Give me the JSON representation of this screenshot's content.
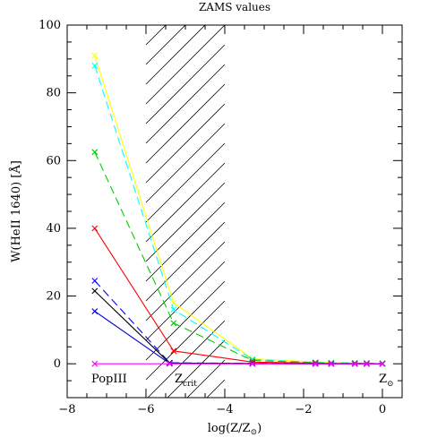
{
  "chart_data": {
    "type": "line",
    "title": "ZAMS values",
    "xlabel": "log(Z/Z",
    "xlabel_sub": "⊙",
    "xlabel_end": ")",
    "ylabel": "W(HeII 1640) [Å]",
    "xlim": [
      -8,
      0.5
    ],
    "ylim": [
      -10,
      100
    ],
    "xticks": [
      -8,
      -6,
      -4,
      -2,
      0
    ],
    "yticks": [
      0,
      20,
      40,
      60,
      80,
      100
    ],
    "grid": false,
    "legend": "none",
    "hatched_region": [
      -6,
      -4
    ],
    "annotations": {
      "popIII": "PopIII",
      "zcrit_main": "Z",
      "zcrit_sub": "crit",
      "zsun_main": "Z",
      "zsun_sub": "⊙"
    },
    "series": [
      {
        "color": "#ffff00",
        "dash": "solid",
        "x": [
          -7.3,
          -5.3,
          -3.3,
          -1.7,
          -1.3,
          -0.7,
          -0.4,
          0
        ],
        "y": [
          91,
          18,
          1.5,
          0.5,
          0.3,
          0.2,
          0.2,
          0.1
        ]
      },
      {
        "color": "#00ffff",
        "dash": "dash",
        "x": [
          -7.3,
          -5.3,
          -3.3,
          -1.7,
          -1.3,
          -0.7,
          -0.4,
          0
        ],
        "y": [
          88,
          16,
          1.3,
          0.4,
          0.3,
          0.2,
          0.2,
          0.1
        ]
      },
      {
        "color": "#00cc00",
        "dash": "dash",
        "x": [
          -7.3,
          -5.3,
          -3.3,
          -1.7,
          -1.3,
          -0.7,
          -0.4,
          0
        ],
        "y": [
          62.5,
          12,
          1,
          0.3,
          0.2,
          0.2,
          0.1,
          0.1
        ]
      },
      {
        "color": "#ff0000",
        "dash": "solid",
        "x": [
          -7.3,
          -5.3,
          -3.3,
          -1.7,
          -1.3,
          -0.7,
          -0.4,
          0
        ],
        "y": [
          40,
          3.8,
          0.5,
          0.2,
          0.1,
          0.1,
          0.1,
          0
        ]
      },
      {
        "color": "#0000ff",
        "dash": "dash",
        "x": [
          -7.3,
          -5.4,
          -3.3,
          -1.7,
          -1.3,
          -0.7,
          -0.4,
          0
        ],
        "y": [
          24.5,
          0.3,
          0.1,
          0.1,
          0,
          0,
          0,
          0
        ]
      },
      {
        "color": "#000000",
        "dash": "solid",
        "x": [
          -7.3,
          -5.4,
          -3.3,
          -1.7,
          -1.3,
          -0.7,
          -0.4,
          0
        ],
        "y": [
          21.5,
          0.2,
          0.1,
          0,
          0,
          0,
          0,
          0
        ]
      },
      {
        "color": "#0000cc",
        "dash": "solid",
        "x": [
          -7.3,
          -5.4,
          -3.3,
          -1.7,
          -1.3,
          -0.7,
          -0.4,
          0
        ],
        "y": [
          15.5,
          0.1,
          0,
          0,
          0,
          0,
          0,
          0
        ]
      },
      {
        "color": "#ff00ff",
        "dash": "solid",
        "x": [
          -7.3,
          -5.4,
          -3.3,
          -1.7,
          -1.3,
          -0.7,
          -0.4,
          0
        ],
        "y": [
          0,
          0,
          0,
          0,
          0,
          0,
          0,
          0
        ]
      }
    ]
  }
}
